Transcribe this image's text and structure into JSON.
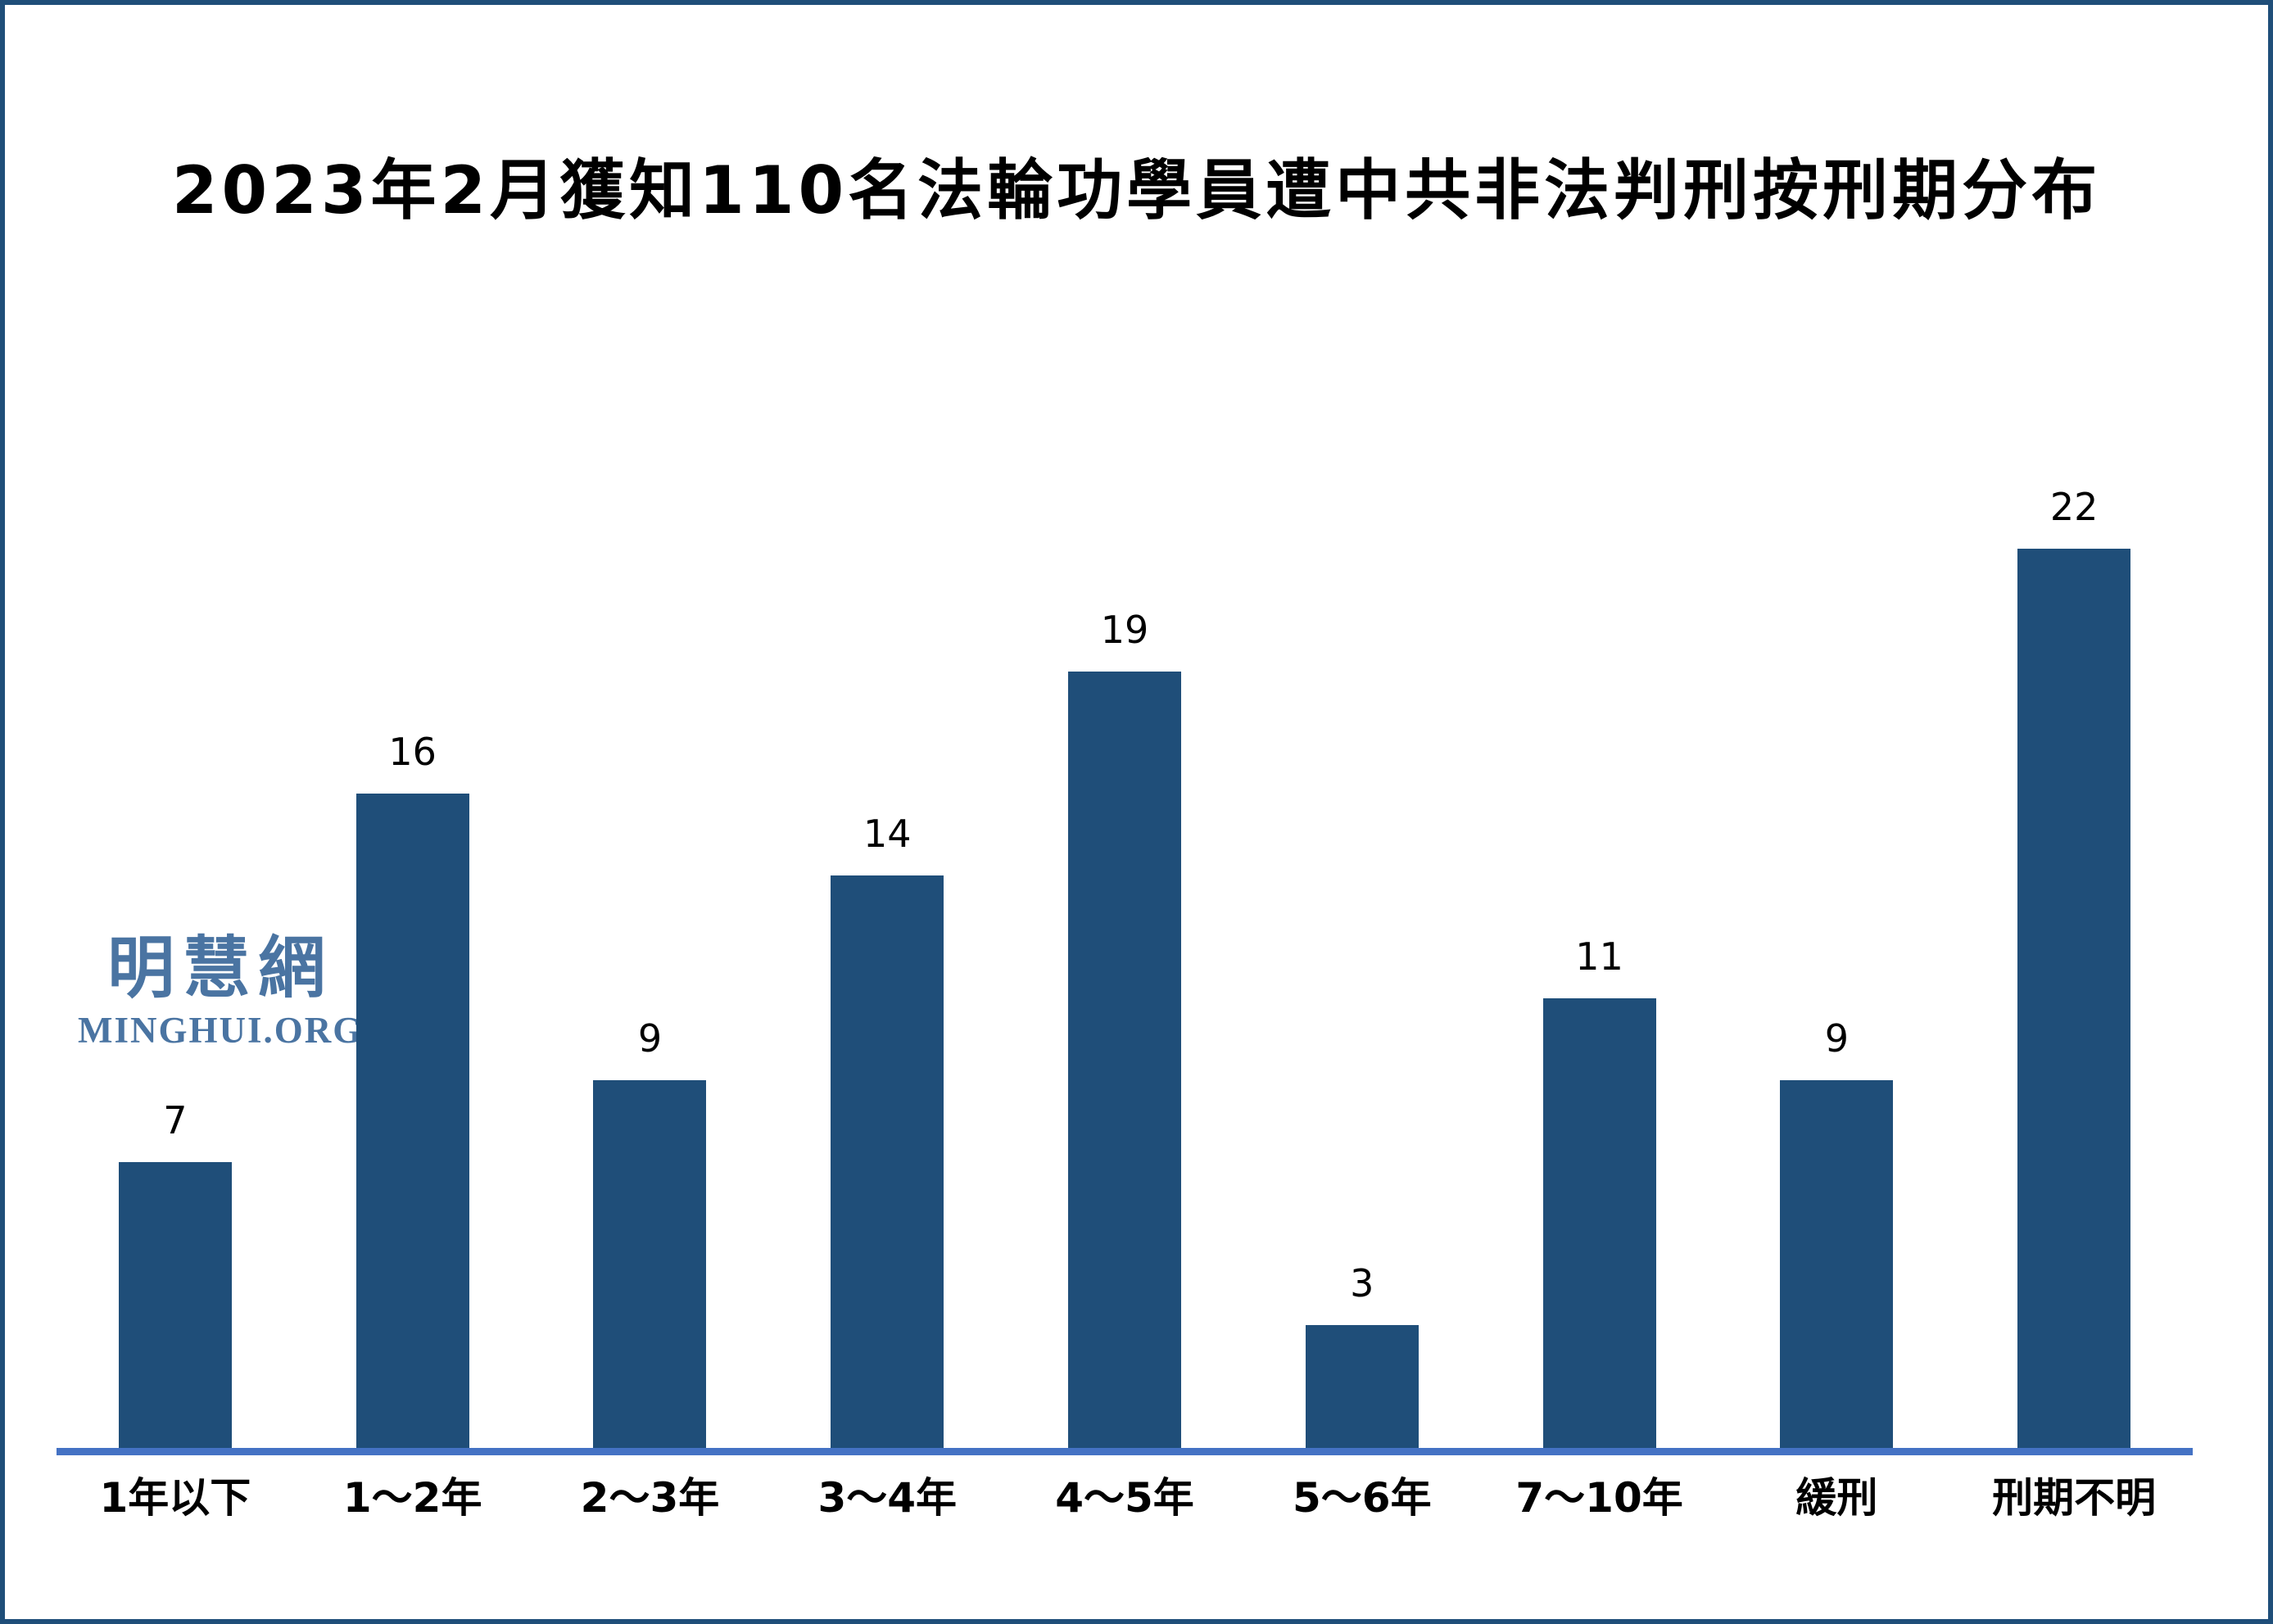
{
  "page": {
    "background": "#ffffff",
    "border_color": "#1F4E79"
  },
  "title": "2023年2月獲知110名法輪功學員遭中共非法判刑按刑期分布",
  "watermark": {
    "cjk": "明慧網",
    "latin": "MINGHUI.ORG",
    "color": "#4A74A2"
  },
  "chart_data": {
    "type": "bar",
    "title": "2023年2月獲知110名法輪功學員遭中共非法判刑按刑期分布",
    "categories": [
      "1年以下",
      "1～2年",
      "2～3年",
      "3～4年",
      "4～5年",
      "5～6年",
      "7～10年",
      "緩刑",
      "刑期不明"
    ],
    "values": [
      7,
      16,
      9,
      14,
      19,
      3,
      11,
      9,
      22
    ],
    "total": 110,
    "xlabel": "",
    "ylabel": "",
    "ylim": [
      0,
      22
    ],
    "grid": "off",
    "legend": "none",
    "value_labels": "above-bars",
    "bar_color": "#1F4E79",
    "axis_line_color": "#4472C4",
    "value_label_color": "#000000",
    "title_color": "#000000",
    "tick_label_color": "#000000"
  }
}
